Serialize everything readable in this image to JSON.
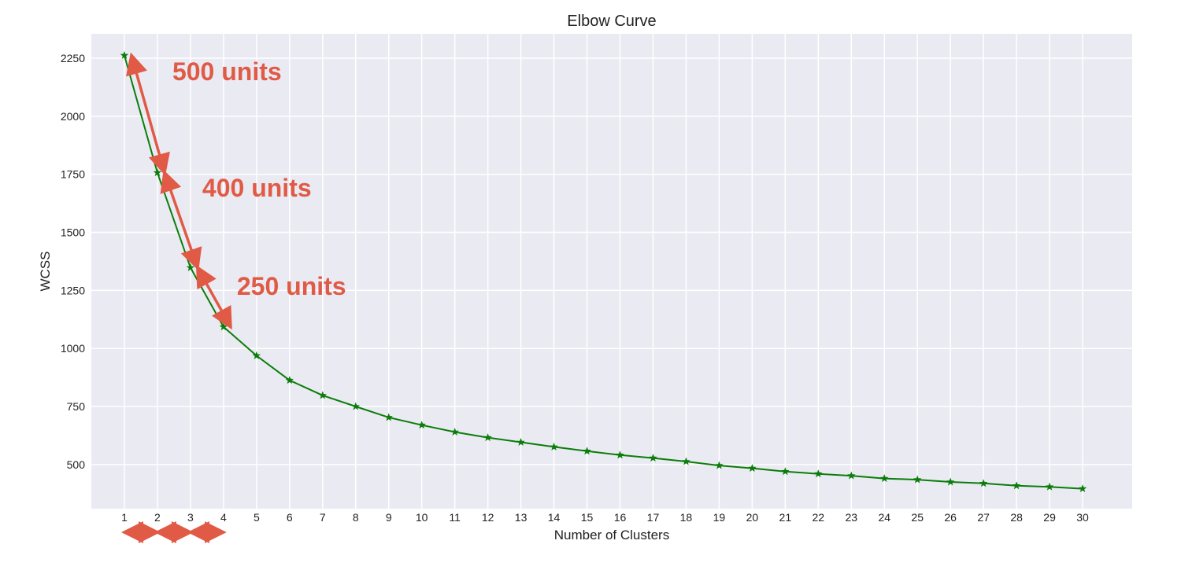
{
  "chart_data": {
    "type": "line",
    "title": "Elbow Curve",
    "xlabel": "Number of Clusters",
    "ylabel": "WCSS",
    "x": [
      1,
      2,
      3,
      4,
      5,
      6,
      7,
      8,
      9,
      10,
      11,
      12,
      13,
      14,
      15,
      16,
      17,
      18,
      19,
      20,
      21,
      22,
      23,
      24,
      25,
      26,
      27,
      28,
      29,
      30
    ],
    "series": [
      {
        "values": [
          2262,
          1757,
          1348,
          1093,
          969,
          863,
          798,
          750,
          703,
          670,
          640,
          616,
          596,
          576,
          558,
          541,
          528,
          513,
          496,
          484,
          470,
          460,
          452,
          440,
          435,
          425,
          419,
          409,
          404,
          396
        ]
      }
    ],
    "xlim": [
      0.0,
      31.5
    ],
    "ylim": [
      310,
      2355
    ],
    "yticks": [
      500,
      750,
      1000,
      1250,
      1500,
      1750,
      2000,
      2250
    ],
    "grid": true,
    "marker": "star",
    "line_color": "#0a7d0a",
    "background_color": "#eaeaf2",
    "annotation_color": "#e05a46",
    "annotations": [
      {
        "text": "500 units"
      },
      {
        "text": "400 units"
      },
      {
        "text": "250 units"
      }
    ]
  }
}
